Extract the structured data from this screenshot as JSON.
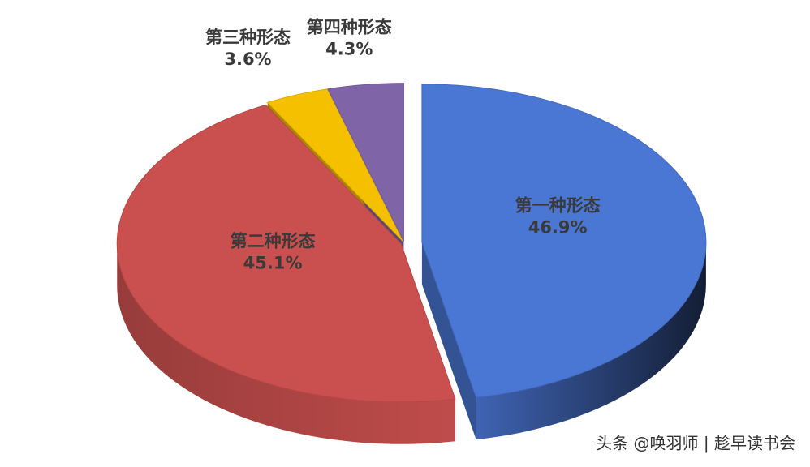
{
  "chart_data": {
    "type": "pie",
    "categories": [
      "第一种形态",
      "第二种形态",
      "第三种形态",
      "第四种形态"
    ],
    "values": [
      46.9,
      45.1,
      3.6,
      4.3
    ],
    "value_labels": [
      "46.9%",
      "45.1%",
      "3.6%",
      "4.3%"
    ],
    "colors": [
      "#4a76d4",
      "#c9504e",
      "#f5c000",
      "#8064a8"
    ],
    "watermark": "头条 @唤羽师 | 趁早读书会"
  }
}
